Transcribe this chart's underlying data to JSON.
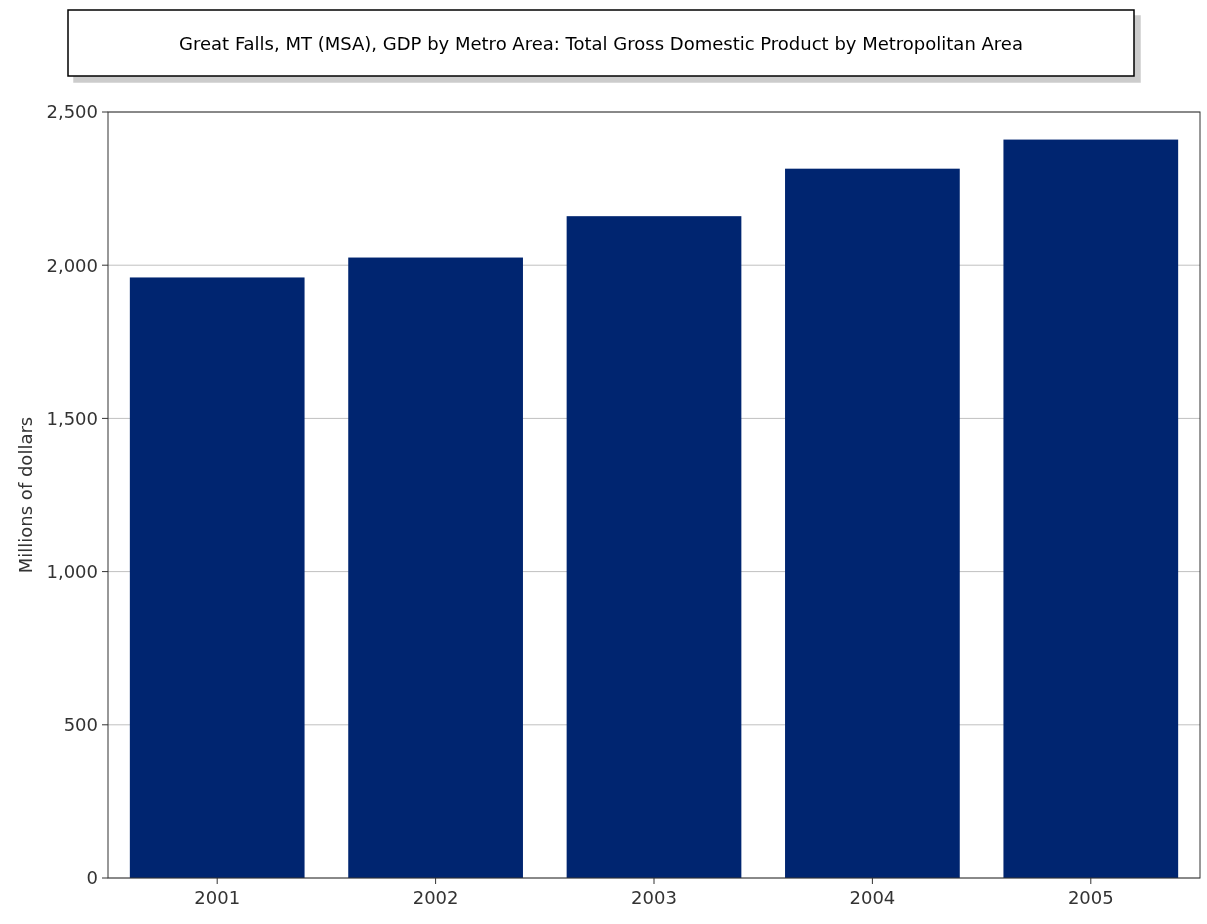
{
  "chart_data": {
    "type": "bar",
    "title": "Great Falls, MT (MSA), GDP by Metro Area: Total Gross Domestic Product by Metropolitan Area",
    "ylabel": "Millions of dollars",
    "categories": [
      "2001",
      "2002",
      "2003",
      "2004",
      "2005"
    ],
    "values": [
      1960,
      2025,
      2160,
      2315,
      2410
    ],
    "color": "#002570",
    "ylim": [
      0,
      2500
    ],
    "yticks": [
      0,
      {
        "value": 500,
        "label": "500"
      },
      {
        "value": 1000,
        "label": "1,000"
      },
      {
        "value": 1500,
        "label": "1,500"
      },
      {
        "value": 2000,
        "label": "2,000"
      },
      {
        "value": 2500,
        "label": "2,500"
      }
    ],
    "grid": "y"
  }
}
